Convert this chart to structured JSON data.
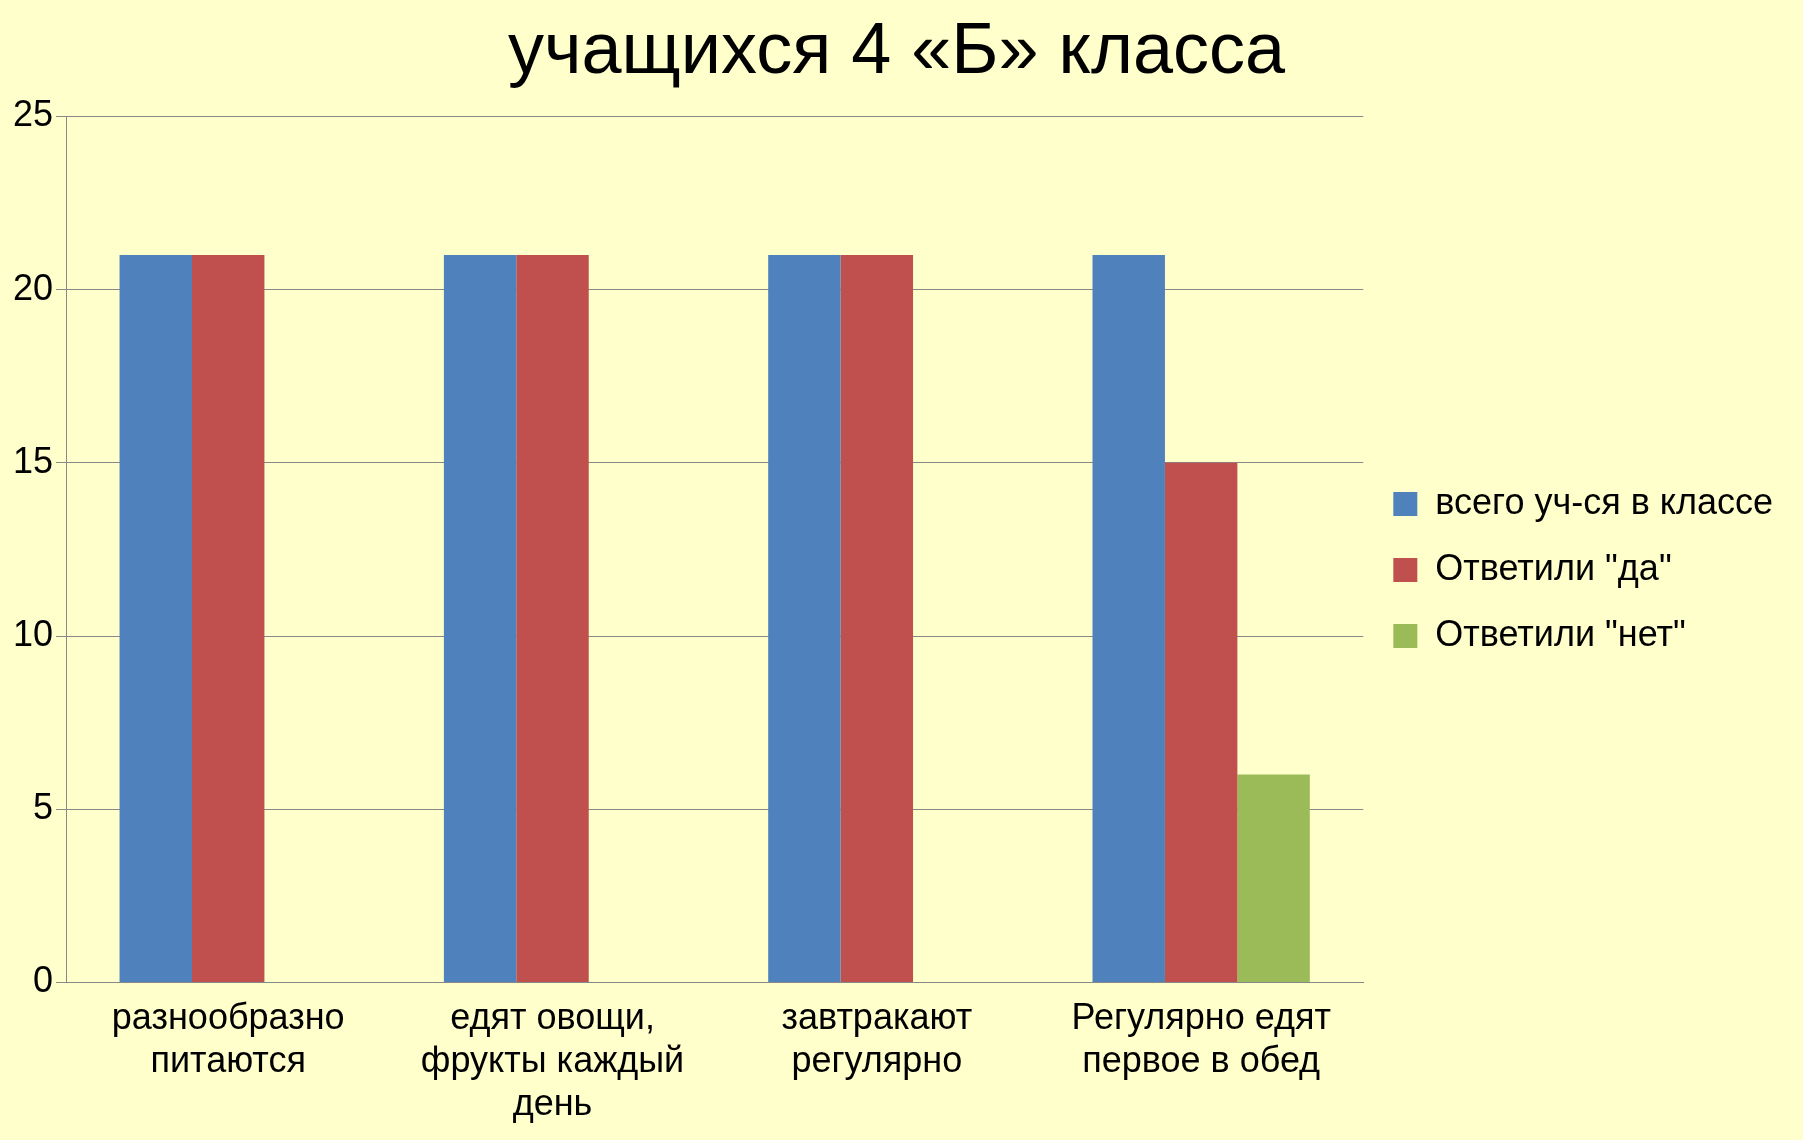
{
  "chart_data": {
    "type": "bar",
    "title": "учащихся 4 «Б» класса",
    "categories": [
      "разнообразно питаются",
      "едят овощи, фрукты каждый день",
      "завтракают регулярно",
      "Регулярно едят первое в обед"
    ],
    "series": [
      {
        "name": "всего уч-ся в классе",
        "color": "#4f81bd",
        "values": [
          21,
          21,
          21,
          21
        ]
      },
      {
        "name": "Ответили \"да\"",
        "color": "#c0504d",
        "values": [
          21,
          21,
          21,
          15
        ]
      },
      {
        "name": "Ответили \"нет\"",
        "color": "#9bbb59",
        "values": [
          null,
          null,
          null,
          6
        ]
      }
    ],
    "ylim": [
      0,
      25
    ],
    "yticks": [
      0,
      5,
      10,
      15,
      20,
      25
    ],
    "grid": "y",
    "legend": "right"
  }
}
